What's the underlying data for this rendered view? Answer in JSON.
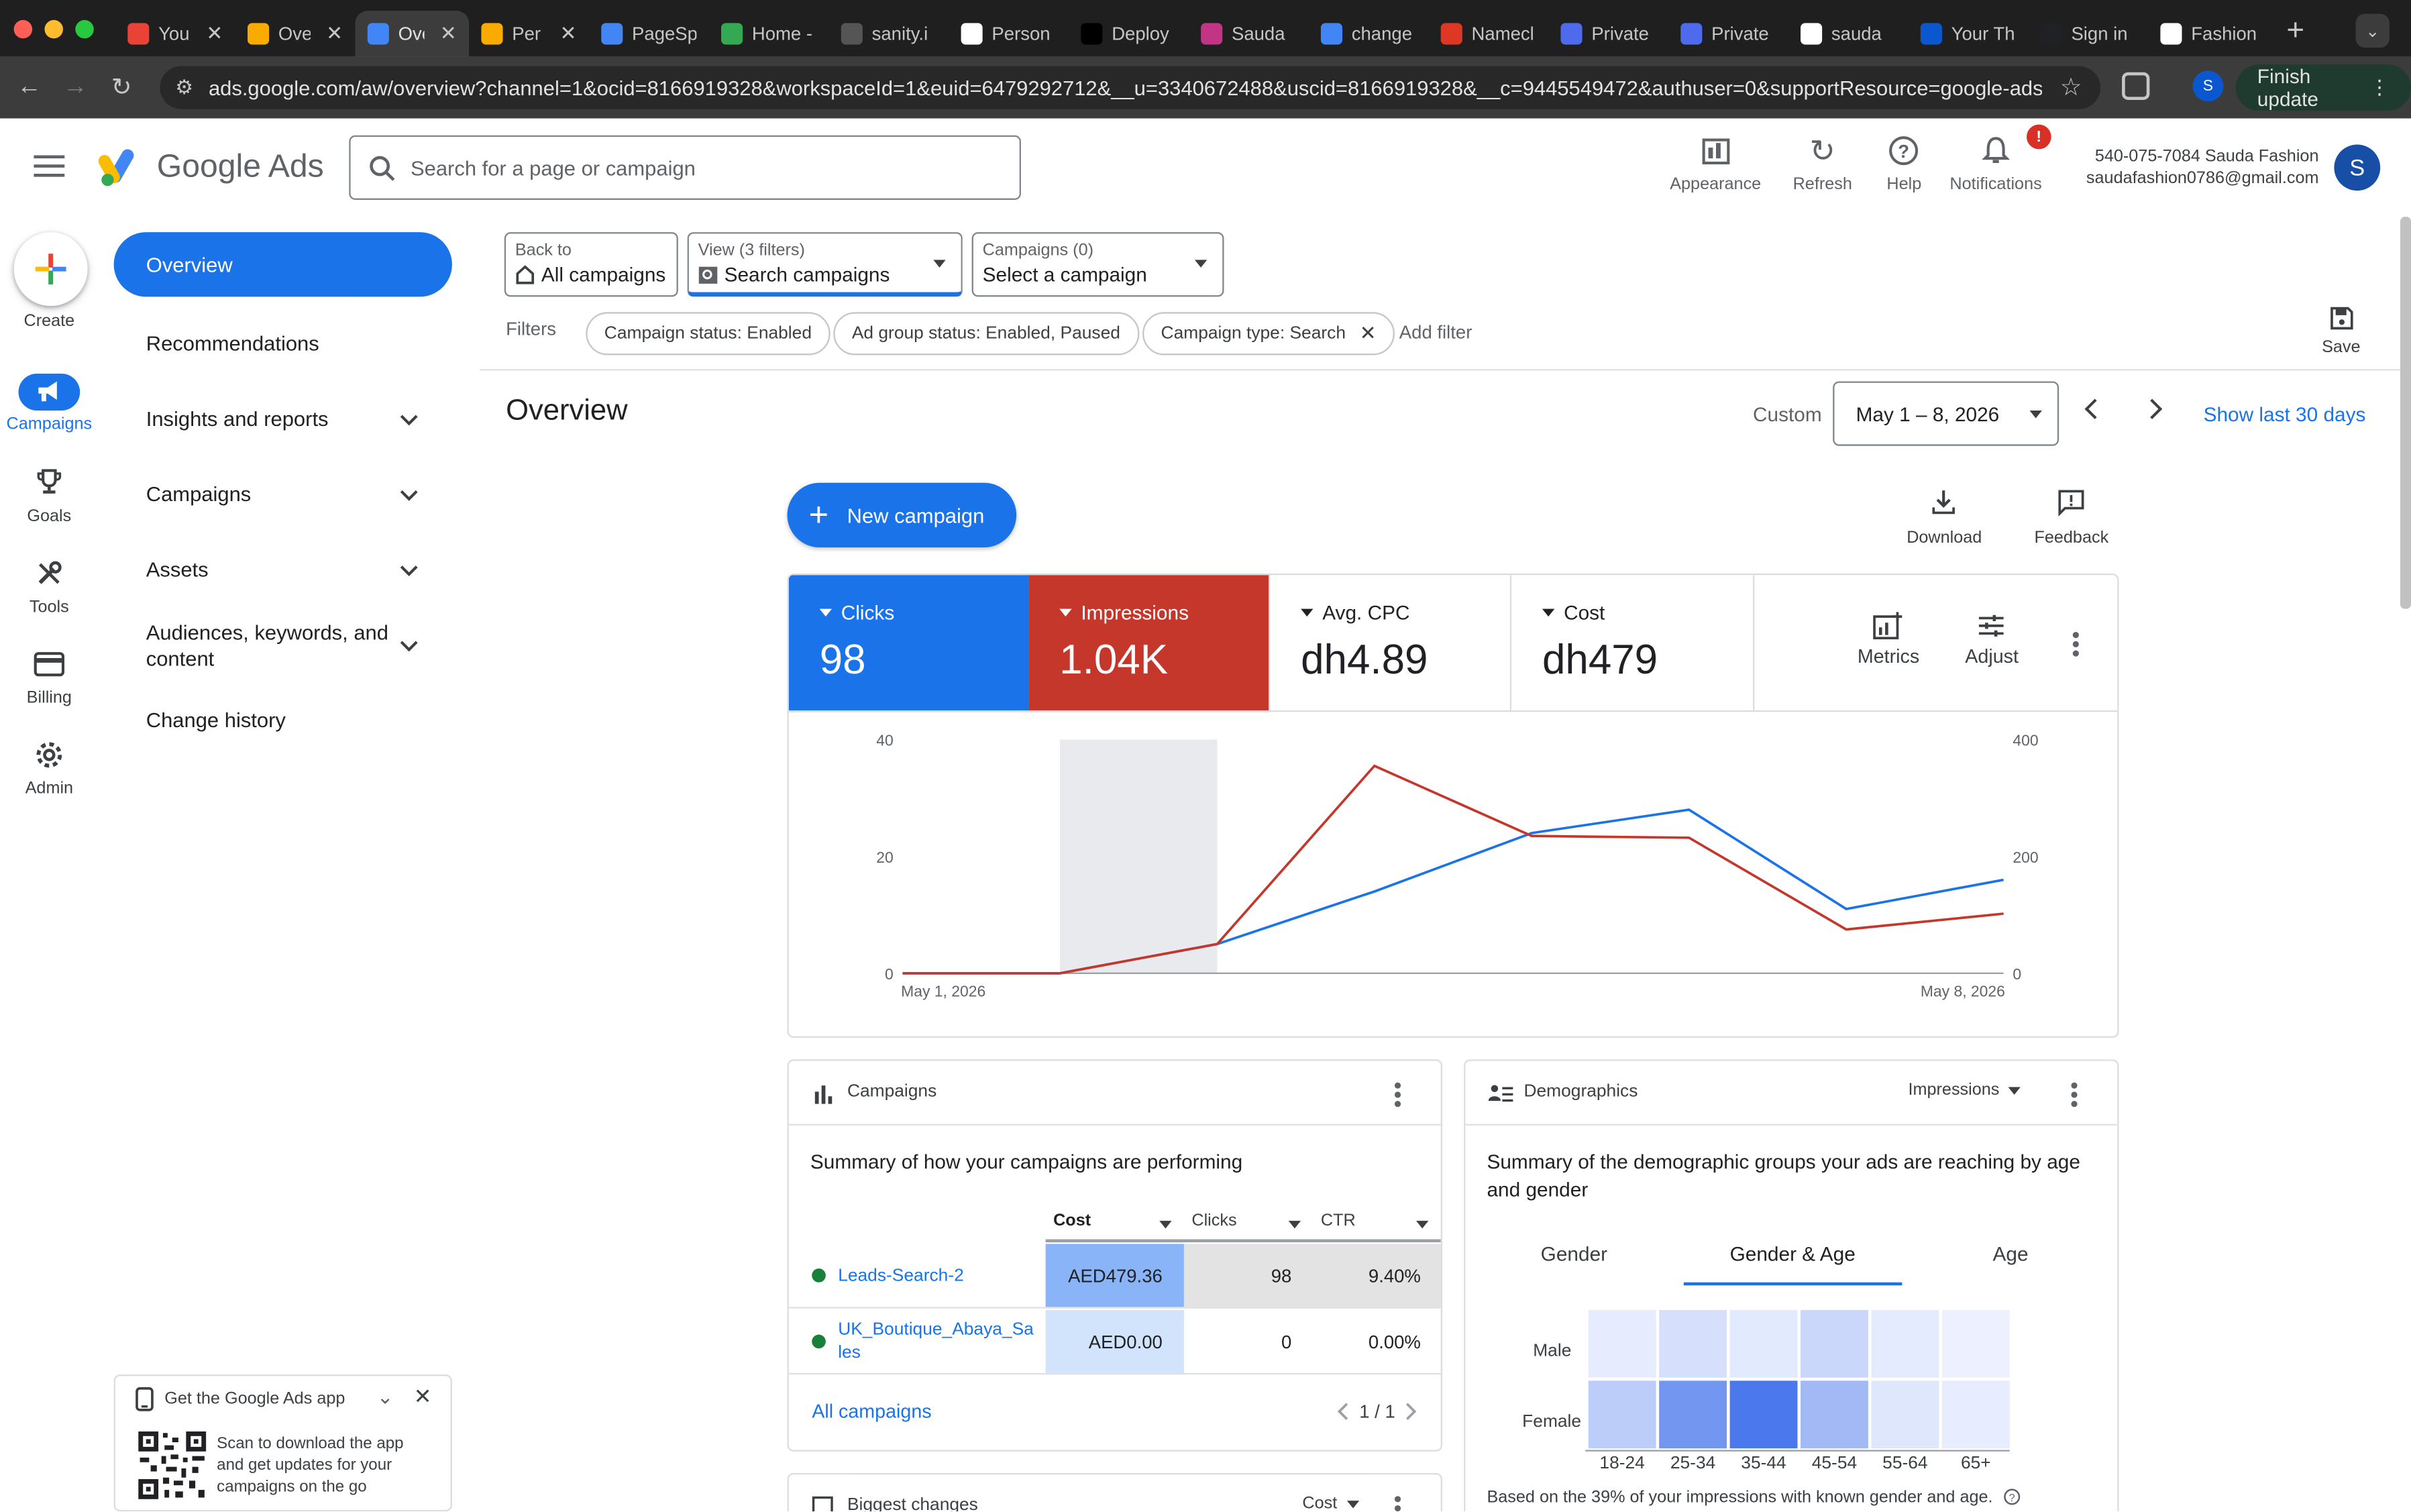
{
  "browser": {
    "tabs": [
      {
        "title": "You",
        "fav": "gmail",
        "color": "#ea4335"
      },
      {
        "title": "Ove",
        "fav": "analytics",
        "color": "#f9ab00"
      },
      {
        "title": "Ove",
        "fav": "ads",
        "color": "#4285f4",
        "active": true
      },
      {
        "title": "Per",
        "fav": "analytics",
        "color": "#f9ab00"
      },
      {
        "title": "PageSp",
        "fav": "pagespeed",
        "color": "#4285f4"
      },
      {
        "title": "Home -",
        "fav": "drive",
        "color": "#34a853"
      },
      {
        "title": "sanity.i",
        "fav": "sanity",
        "color": "#555555"
      },
      {
        "title": "Person",
        "fav": "github",
        "color": "#ffffff"
      },
      {
        "title": "Deploy",
        "fav": "vercel",
        "color": "#000000"
      },
      {
        "title": "Sauda",
        "fav": "instagram",
        "color": "#c13584"
      },
      {
        "title": "change",
        "fav": "gemini",
        "color": "#4285f4"
      },
      {
        "title": "Namecl",
        "fav": "namecheap",
        "color": "#de3723"
      },
      {
        "title": "Private",
        "fav": "p",
        "color": "#4f6bed"
      },
      {
        "title": "Private",
        "fav": "p",
        "color": "#4f6bed"
      },
      {
        "title": "sauda",
        "fav": "google",
        "color": "#ffffff"
      },
      {
        "title": "Your Th",
        "fav": "t",
        "color": "#0b57d0"
      },
      {
        "title": "Sign in",
        "fav": "fg",
        "color": "#202124"
      },
      {
        "title": "Fashion",
        "fav": "google",
        "color": "#ffffff"
      }
    ],
    "url": "ads.google.com/aw/overview?channel=1&ocid=8166919328&workspaceId=1&euid=6479292712&__u=3340672488&uscid=8166919328&__c=9445549472&authuser=0&supportResource=google-ads/an...",
    "profile_initial": "S",
    "finish_update": "Finish update"
  },
  "header": {
    "brand": "Google Ads",
    "search_placeholder": "Search for a page or campaign",
    "tools": {
      "appearance": "Appearance",
      "refresh": "Refresh",
      "help": "Help",
      "notifications": "Notifications",
      "notif_badge": "!"
    },
    "account_line1": "540-075-7084 Sauda Fashion",
    "account_line2": "saudafashion0786@gmail.com",
    "avatar_initial": "S"
  },
  "rail": {
    "create": "Create",
    "campaigns": "Campaigns",
    "goals": "Goals",
    "tools": "Tools",
    "billing": "Billing",
    "admin": "Admin"
  },
  "nav": {
    "overview": "Overview",
    "recommendations": "Recommendations",
    "insights": "Insights and reports",
    "campaigns": "Campaigns",
    "assets": "Assets",
    "audiences": "Audiences, keywords, and content",
    "change_history": "Change history"
  },
  "app_promo": {
    "title": "Get the Google Ads app",
    "desc": "Scan to download the app and get updates for your campaigns on the go"
  },
  "filterbar": {
    "back_small": "Back to",
    "back_value": "All campaigns",
    "view_small": "View (3 filters)",
    "view_value": "Search campaigns",
    "campaigns_small": "Campaigns (0)",
    "campaigns_value": "Select a campaign",
    "filters_label": "Filters",
    "chips": [
      "Campaign status: Enabled",
      "Ad group status: Enabled, Paused",
      "Campaign type: Search"
    ],
    "add_filter": "Add filter",
    "save": "Save"
  },
  "overview": {
    "title": "Overview",
    "custom": "Custom",
    "date_range": "May 1 – 8, 2026",
    "show_last": "Show last 30 days",
    "new_campaign": "New campaign",
    "download": "Download",
    "feedback": "Feedback"
  },
  "metrics": {
    "clicks": {
      "name": "Clicks",
      "value": "98"
    },
    "impressions": {
      "name": "Impressions",
      "value": "1.04K"
    },
    "avg_cpc": {
      "name": "Avg. CPC",
      "value": "dh4.89"
    },
    "cost": {
      "name": "Cost",
      "value": "dh479"
    },
    "metrics_btn": "Metrics",
    "adjust_btn": "Adjust"
  },
  "chart_data": {
    "type": "line",
    "x": [
      "May 1, 2026",
      "May 2, 2026",
      "May 3, 2026",
      "May 4, 2026",
      "May 5, 2026",
      "May 6, 2026",
      "May 7, 2026",
      "May 8, 2026"
    ],
    "x_tick_labels": [
      "May 1, 2026",
      "May 8, 2026"
    ],
    "series": [
      {
        "name": "Clicks",
        "axis": "left",
        "color": "#1a73e8",
        "values": [
          0,
          0,
          5,
          14,
          24,
          28,
          11,
          16
        ]
      },
      {
        "name": "Impressions",
        "axis": "right",
        "color": "#c5362b",
        "values": [
          0,
          0,
          50,
          355,
          235,
          232,
          75,
          102
        ]
      }
    ],
    "y_left": {
      "ticks": [
        0,
        20,
        40
      ],
      "range": [
        0,
        40
      ]
    },
    "y_right": {
      "ticks": [
        0,
        200,
        400
      ],
      "range": [
        0,
        400
      ]
    },
    "highlight_range": [
      "May 2, 2026",
      "May 3, 2026"
    ],
    "grid": false,
    "legend": "none"
  },
  "campaigns_card": {
    "title": "Campaigns",
    "summary": "Summary of how your campaigns are performing",
    "columns": [
      "Cost",
      "Clicks",
      "CTR"
    ],
    "rows": [
      {
        "name": "Leads-Search-2",
        "cost": "AED479.36",
        "clicks": "98",
        "ctr": "9.40%"
      },
      {
        "name": "UK_Boutique_Abaya_Sa les",
        "cost": "AED0.00",
        "clicks": "0",
        "ctr": "0.00%"
      }
    ],
    "all_link": "All campaigns",
    "pager": "1 / 1"
  },
  "demographics_card": {
    "title": "Demographics",
    "metric_dropdown": "Impressions",
    "summary": "Summary of the demographic groups your ads are reaching by age and gender",
    "tabs": [
      "Gender",
      "Gender & Age",
      "Age"
    ],
    "rows": [
      "Male",
      "Female"
    ],
    "age_groups": [
      "18-24",
      "25-34",
      "35-44",
      "45-54",
      "55-64",
      "65+"
    ],
    "intensity": {
      "male": [
        0.06,
        0.15,
        0.08,
        0.22,
        0.07,
        0.02
      ],
      "female": [
        0.3,
        0.72,
        0.95,
        0.45,
        0.1,
        0.05
      ]
    },
    "note": "Based on the 39% of your impressions with known gender and age."
  },
  "biggest_changes": {
    "title": "Biggest changes",
    "dropdown": "Cost"
  }
}
